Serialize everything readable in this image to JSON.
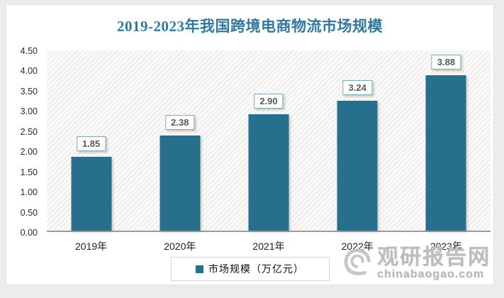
{
  "title": "2019-2023年我国跨境电商物流市场规模",
  "chart_data": {
    "type": "bar",
    "title": "2019-2023年我国跨境电商物流市场规模",
    "categories": [
      "2019年",
      "2020年",
      "2021年",
      "2022年",
      "2023年"
    ],
    "series": [
      {
        "name": "市场规模（万亿元）",
        "values": [
          1.85,
          2.38,
          2.9,
          3.24,
          3.88
        ]
      }
    ],
    "ylim": [
      0,
      4.5
    ],
    "ytick_step": 0.5,
    "ytick_labels": [
      "0.00",
      "0.50",
      "1.00",
      "1.50",
      "2.00",
      "2.50",
      "3.00",
      "3.50",
      "4.00",
      "4.50"
    ],
    "grid": false,
    "legend_position": "bottom",
    "bar_color": "#26708e",
    "plot_background": "diagonal-hatch"
  },
  "legend": {
    "label": "市场规模（万亿元）",
    "marker_color": "#26708e"
  },
  "watermark": {
    "site_name": "观研报告网",
    "site_url": "chinabaogao.com",
    "logo": "swirl-circle-logo"
  },
  "colors": {
    "title_text": "#31789d",
    "bar_fill": "#26708e",
    "page_background": "#ececec",
    "panel_background": "#ffffff",
    "axis_line": "#9b9b9b",
    "value_label_text": "#595959",
    "value_label_border": "#7da9bd",
    "watermark_gray": "#bdbdbd"
  }
}
